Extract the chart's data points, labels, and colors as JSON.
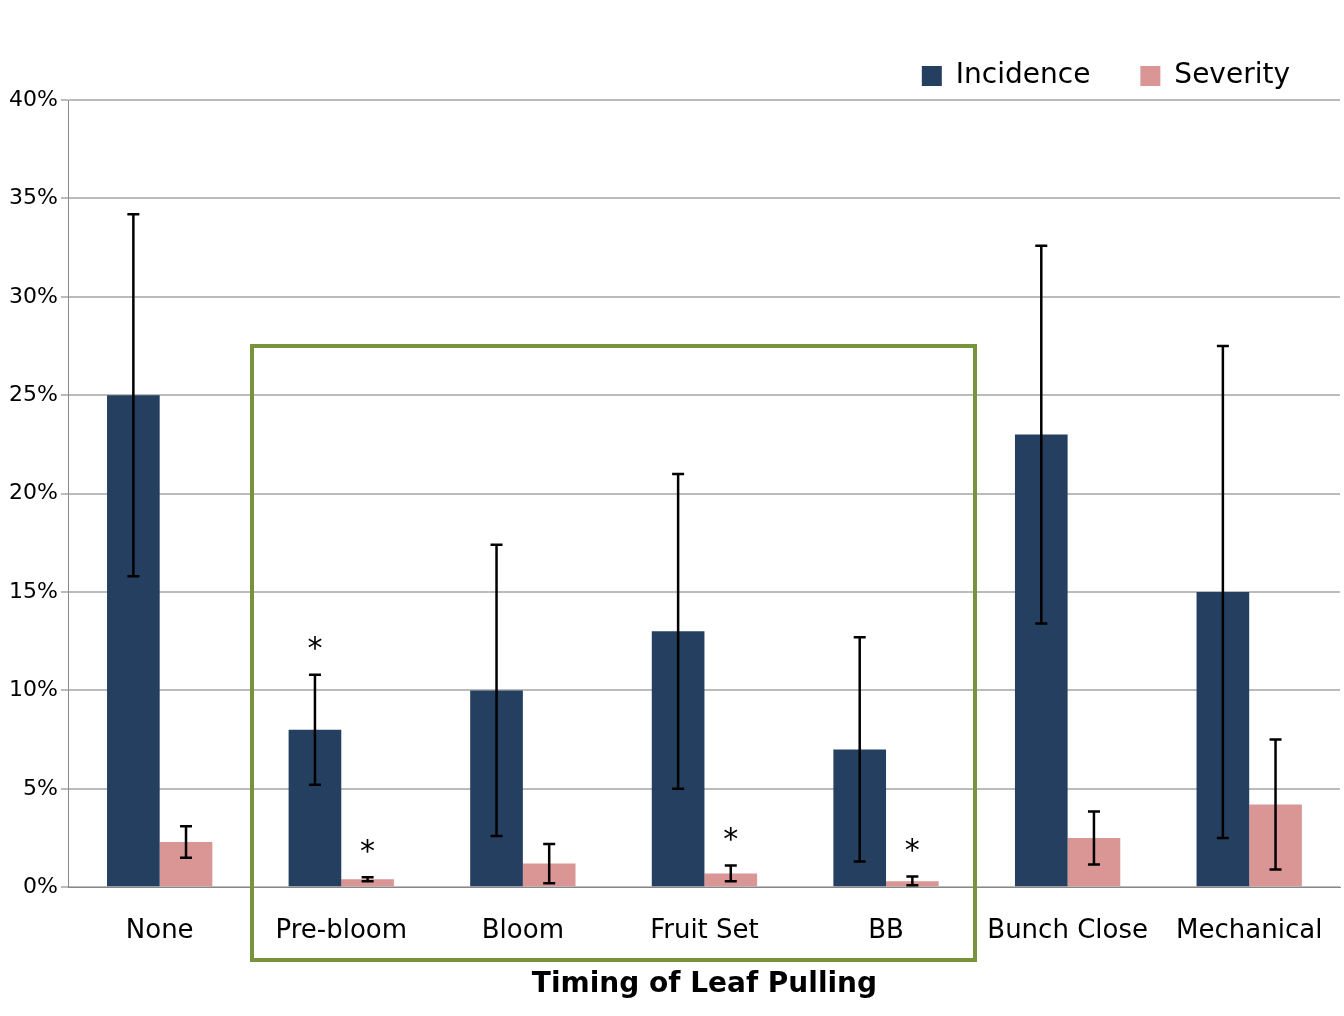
{
  "chart_data": {
    "type": "bar",
    "xlabel": "Timing of Leaf Pulling",
    "categories": [
      "None",
      "Pre-bloom",
      "Bloom",
      "Fruit Set",
      "BB",
      "Bunch Close",
      "Mechanical"
    ],
    "series": [
      {
        "name": "Incidence",
        "color": "#243f60",
        "values": [
          25,
          8,
          10,
          13,
          7,
          23,
          15
        ],
        "errors": [
          9.2,
          2.8,
          7.4,
          8,
          5.7,
          9.6,
          12.5
        ]
      },
      {
        "name": "Severity",
        "color": "#d99694",
        "values": [
          2.3,
          0.4,
          1.2,
          0.7,
          0.3,
          2.5,
          4.2
        ],
        "errors": [
          0.8,
          0.1,
          1,
          0.4,
          [
            0.1,
            0.55
          ],
          1.35,
          3.3
        ]
      }
    ],
    "ylim": [
      0,
      40
    ],
    "yticks": [
      {
        "value": 0,
        "label": "0%"
      },
      {
        "value": 5,
        "label": "5%"
      },
      {
        "value": 10,
        "label": "10%"
      },
      {
        "value": 15,
        "label": "15%"
      },
      {
        "value": 20,
        "label": "20%"
      },
      {
        "value": 25,
        "label": "25%"
      },
      {
        "value": 30,
        "label": "30%"
      },
      {
        "value": 35,
        "label": "35%"
      },
      {
        "value": 40,
        "label": "40%"
      }
    ],
    "grid": "y",
    "legend": "top right",
    "annotations": [
      {
        "text": "*",
        "x": "Pre-bloom",
        "y": 8
      },
      {
        "text": "*",
        "x": "Pre-bloom",
        "y": 0.4
      },
      {
        "text": "*",
        "x": "Fruit Set",
        "y": 0.7
      },
      {
        "text": "*",
        "x": "BB",
        "y": 0.3
      }
    ]
  }
}
